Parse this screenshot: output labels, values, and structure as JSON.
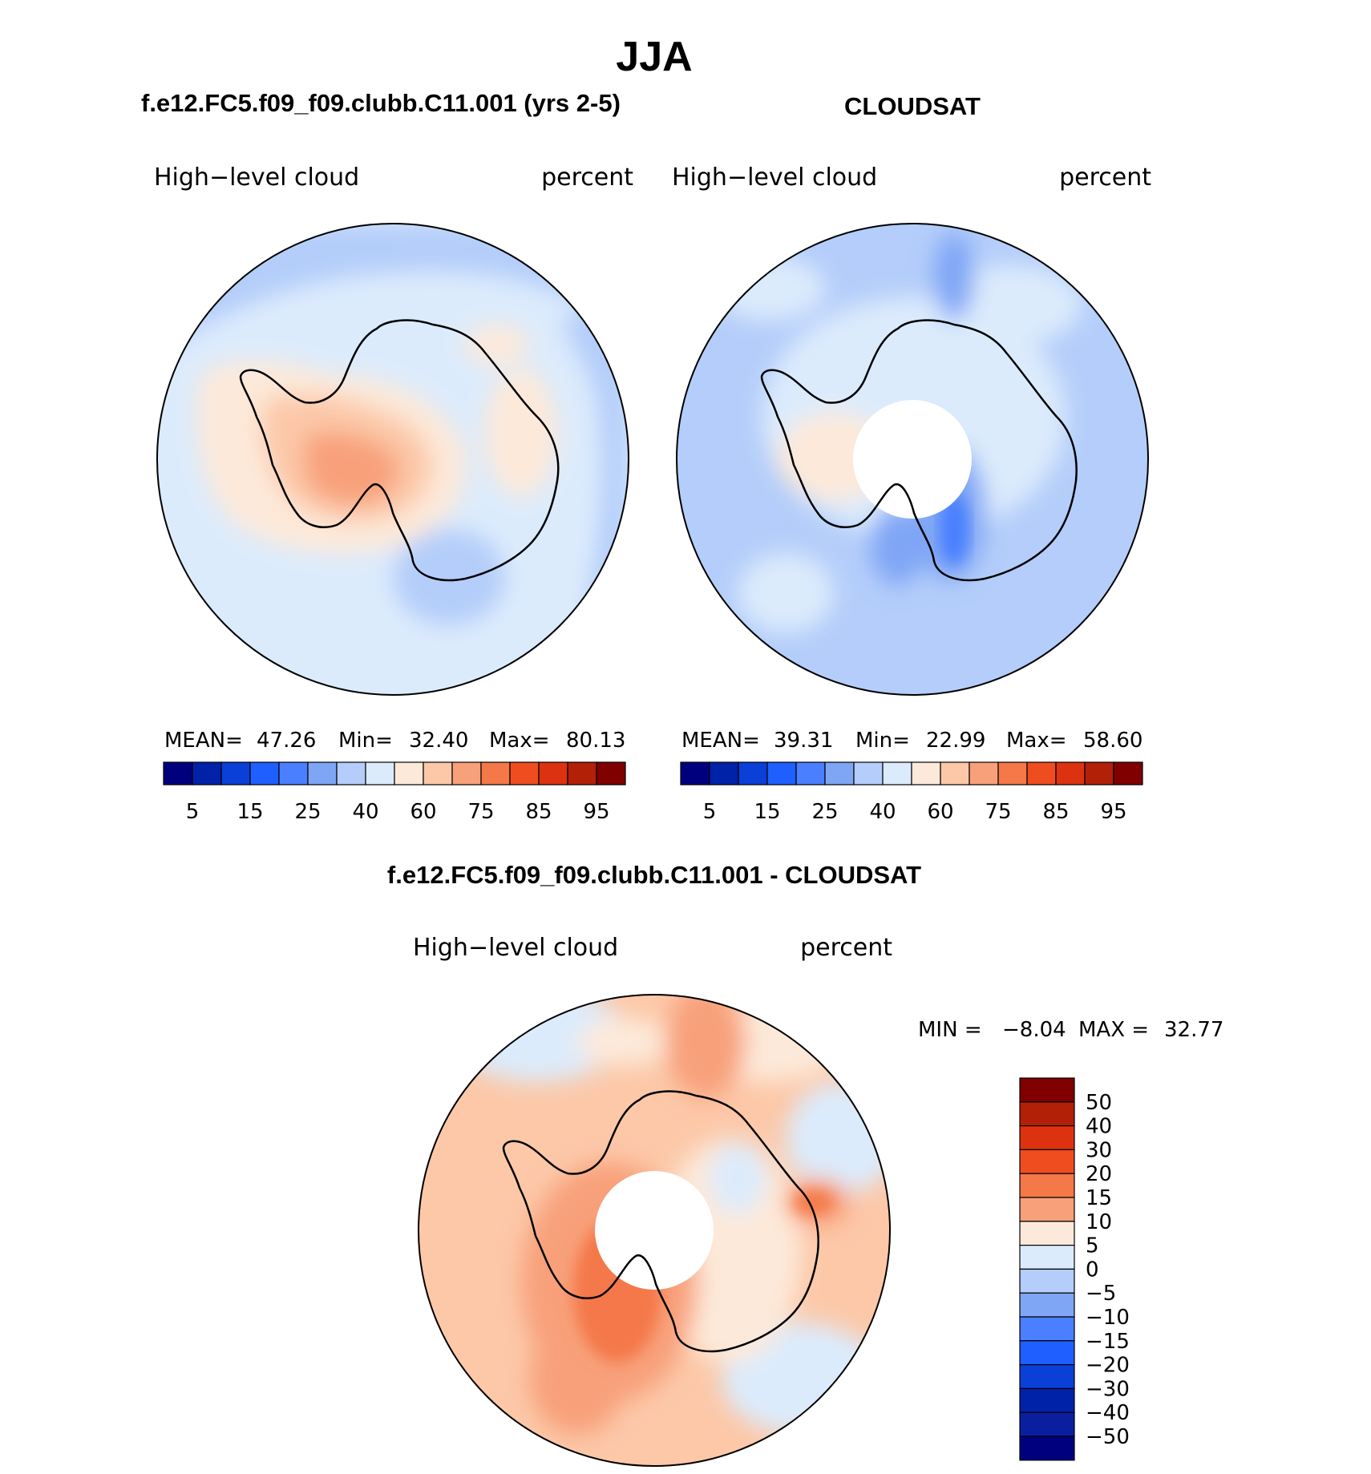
{
  "chart_data": [
    {
      "type": "heatmap",
      "projection": "south-polar-stereographic",
      "title": "f.e12.FC5.f09_f09.clubb.C11.001 (yrs 2-5)",
      "left_label": "High−level cloud",
      "right_label": "percent",
      "stats": {
        "mean_label": "MEAN=",
        "mean": "47.26",
        "min_label": "Min=",
        "min": "32.40",
        "max_label": "Max=",
        "max": "80.13"
      },
      "colorbar": {
        "orientation": "horizontal",
        "colors": [
          "#00007f",
          "#0022a8",
          "#0a3fd8",
          "#1f5fff",
          "#4a7fff",
          "#7fa6f5",
          "#b4cdfa",
          "#dcebfc",
          "#fde9d9",
          "#fcc8a8",
          "#f8a07a",
          "#f47848",
          "#ef4d20",
          "#dd3210",
          "#b32008",
          "#800000"
        ],
        "tick_labels": [
          "5",
          "15",
          "25",
          "40",
          "60",
          "75",
          "85",
          "95"
        ]
      }
    },
    {
      "type": "heatmap",
      "projection": "south-polar-stereographic",
      "title": "CLOUDSAT",
      "left_label": "High−level cloud",
      "right_label": "percent",
      "stats": {
        "mean_label": "MEAN=",
        "mean": "39.31",
        "min_label": "Min=",
        "min": "22.99",
        "max_label": "Max=",
        "max": "58.60"
      },
      "colorbar": {
        "orientation": "horizontal",
        "colors": [
          "#00007f",
          "#0022a8",
          "#0a3fd8",
          "#1f5fff",
          "#4a7fff",
          "#7fa6f5",
          "#b4cdfa",
          "#dcebfc",
          "#fde9d9",
          "#fcc8a8",
          "#f8a07a",
          "#f47848",
          "#ef4d20",
          "#dd3210",
          "#b32008",
          "#800000"
        ],
        "tick_labels": [
          "5",
          "15",
          "25",
          "40",
          "60",
          "75",
          "85",
          "95"
        ]
      }
    },
    {
      "type": "heatmap",
      "projection": "south-polar-stereographic",
      "title": "f.e12.FC5.f09_f09.clubb.C11.001 - CLOUDSAT",
      "left_label": "High−level cloud",
      "right_label": "percent",
      "stats": {
        "min_label": "MIN =",
        "min": "−8.04",
        "max_label": "MAX =",
        "max": "32.77"
      },
      "colorbar": {
        "orientation": "vertical",
        "colors_top_to_bottom": [
          "#800000",
          "#b32008",
          "#dd3210",
          "#ef4d20",
          "#f47848",
          "#f8a07a",
          "#fde9d9",
          "#dcebfc",
          "#b4cdfa",
          "#7fa6f5",
          "#4a7fff",
          "#1f5fff",
          "#0a3fd8",
          "#0022a8",
          "#0a1fa0",
          "#00007f"
        ],
        "tick_labels": [
          "50",
          "40",
          "30",
          "20",
          "15",
          "10",
          "5",
          "0",
          "−5",
          "−10",
          "−15",
          "−20",
          "−30",
          "−40",
          "−50"
        ]
      }
    }
  ],
  "figure_title": "JJA"
}
